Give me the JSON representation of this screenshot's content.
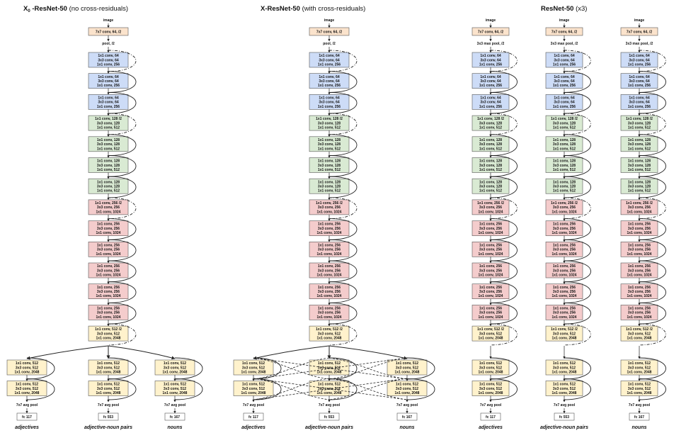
{
  "titles": {
    "left_bold": "X",
    "left_sub": "0",
    "left_bold2": " -ResNet-50",
    "left_normal": " (no cross-residuals)",
    "mid_bold": "X-ResNet-50",
    "mid_normal": " (with cross-residuals)",
    "right_bold": "ResNet-50",
    "right_normal": " (x3)"
  },
  "labels": {
    "image": "image",
    "conv1": "7x7 conv, 64, /2",
    "pool": "pool, /2",
    "maxpool": "3x3 max pool, /2",
    "avgpool": "7x7 avg pool",
    "fc_adj": "fc 117",
    "fc_anp": "fc 553",
    "fc_noun": "fc 167",
    "head_adj": "adjectives",
    "head_anp": "adjective-noun pairs",
    "head_noun": "nouns"
  },
  "blocks": {
    "s1": [
      "1x1 conv, 64",
      "3x3 conv, 64",
      "1x1 conv, 256"
    ],
    "s2a": [
      "1x1 conv, 128 /2",
      "3x3 conv, 128",
      "1x1 conv, 512"
    ],
    "s2": [
      "1x1 conv, 128",
      "3x3 conv, 128",
      "1x1 conv, 512"
    ],
    "s3a": [
      "1x1 conv, 256 /2",
      "3x3 conv, 256",
      "1x1 conv, 1024"
    ],
    "s3": [
      "1x1 conv, 256",
      "3x3 conv, 256",
      "1x1 conv, 1024"
    ],
    "s4a": [
      "1x1 conv, 512 /2",
      "3x3 conv, 512",
      "1x1 conv, 2048"
    ],
    "s4": [
      "1x1 conv, 512",
      "3x3 conv, 512",
      "1x1 conv, 2048"
    ]
  },
  "colors": {
    "conv1": "#fbe3cc",
    "s1": "#cddcf7",
    "s2": "#d9ead3",
    "s3": "#f4cccc",
    "s4": "#fff2cc",
    "border": "#555555"
  }
}
